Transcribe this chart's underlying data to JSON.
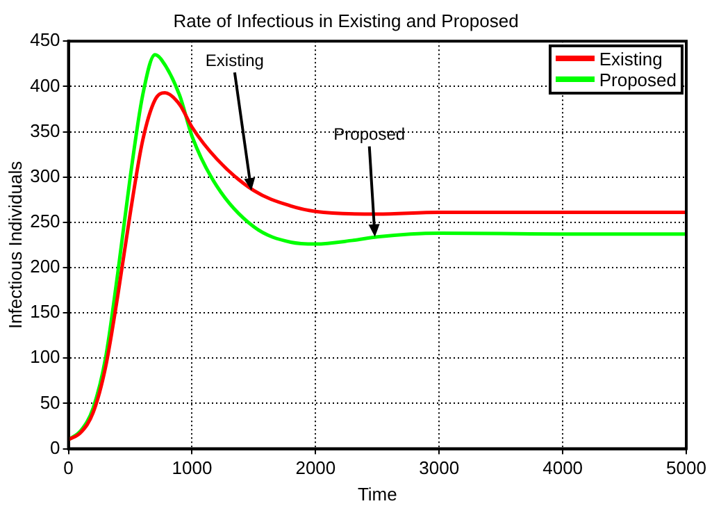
{
  "chart_data": {
    "type": "line",
    "title": "Rate of Infectious in Existing and Proposed",
    "xlabel": "Time",
    "ylabel": "Infectious Individuals",
    "series": [
      {
        "name": "Existing",
        "color": "#ff0000",
        "x": [
          0,
          100,
          200,
          300,
          400,
          500,
          600,
          700,
          780,
          900,
          1000,
          1200,
          1500,
          1800,
          2000,
          2500,
          3000,
          4000,
          5000
        ],
        "values": [
          10,
          18,
          40,
          90,
          170,
          260,
          340,
          385,
          393,
          380,
          355,
          320,
          285,
          268,
          262,
          259,
          261,
          261,
          261
        ]
      },
      {
        "name": "Proposed",
        "color": "#00ff00",
        "x": [
          0,
          100,
          200,
          300,
          400,
          500,
          600,
          700,
          750,
          900,
          1000,
          1200,
          1500,
          1800,
          2000,
          2300,
          2500,
          3000,
          4000,
          5000
        ],
        "values": [
          10,
          20,
          45,
          100,
          195,
          300,
          390,
          435,
          430,
          390,
          345,
          290,
          245,
          228,
          226,
          230,
          234,
          238,
          237,
          237
        ]
      }
    ],
    "annotations": [
      {
        "text": "Existing",
        "x": 1480,
        "y": 285
      },
      {
        "text": "Proposed",
        "x": 2480,
        "y": 234
      }
    ],
    "xlim": [
      0,
      5000
    ],
    "xticks": [
      0,
      1000,
      2000,
      3000,
      4000,
      5000
    ],
    "ylim": [
      0,
      450
    ],
    "yticks": [
      0,
      50,
      100,
      150,
      200,
      250,
      300,
      350,
      400,
      450
    ],
    "grid": true,
    "legend": "top right",
    "line_style": "solid",
    "marker": "none"
  }
}
